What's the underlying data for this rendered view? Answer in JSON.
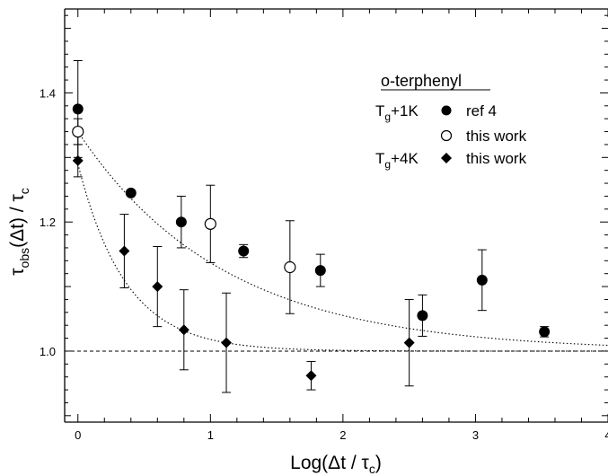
{
  "chart_data": {
    "type": "scatter",
    "title": "o-terphenyl",
    "xlabel": {
      "main": "Log(Δt / τ",
      "sub": "c",
      "tail": ")"
    },
    "ylabel": {
      "main": "τ",
      "sub1": "obs",
      "middle": "(Δt) / τ",
      "sub2": "c"
    },
    "xlim": [
      -0.1,
      4.0
    ],
    "ylim": [
      0.89,
      1.53
    ],
    "x_ticks": [
      0,
      1,
      2,
      3,
      4
    ],
    "x_tick_labels": [
      "0",
      "1",
      "2",
      "3",
      "4"
    ],
    "y_ticks": [
      1.0,
      1.2,
      1.4
    ],
    "y_tick_labels": [
      "1.0",
      "1.2",
      "1.4"
    ],
    "grid": false,
    "legend_position": "top-right",
    "legend": {
      "rows": [
        {
          "group_main": "T",
          "group_sub": "g",
          "group_tail": "+1K",
          "label": "ref 4",
          "marker": "filled-circle"
        },
        {
          "group_main": "",
          "group_sub": "",
          "group_tail": "",
          "label": "this work",
          "marker": "open-circle"
        },
        {
          "group_main": "T",
          "group_sub": "g",
          "group_tail": "+4K",
          "label": "this work",
          "marker": "filled-diamond"
        }
      ]
    },
    "series": [
      {
        "marker": "filled-circle",
        "points": [
          {
            "x": 0.0,
            "y": 1.375,
            "err": 0.075
          },
          {
            "x": 0.4,
            "y": 1.245,
            "err": 0.0
          },
          {
            "x": 0.78,
            "y": 1.2,
            "err": 0.04
          },
          {
            "x": 1.25,
            "y": 1.155,
            "err": 0.01
          },
          {
            "x": 1.83,
            "y": 1.125,
            "err": 0.025
          },
          {
            "x": 2.6,
            "y": 1.055,
            "err": 0.032
          },
          {
            "x": 3.05,
            "y": 1.11,
            "err": 0.047
          },
          {
            "x": 3.52,
            "y": 1.03,
            "err": 0.008
          }
        ]
      },
      {
        "marker": "open-circle",
        "points": [
          {
            "x": 0.0,
            "y": 1.34,
            "err": 0.02
          },
          {
            "x": 1.0,
            "y": 1.197,
            "err": 0.06
          },
          {
            "x": 1.6,
            "y": 1.13,
            "err": 0.072
          }
        ]
      },
      {
        "marker": "filled-diamond",
        "points": [
          {
            "x": 0.0,
            "y": 1.295,
            "err": 0.025
          },
          {
            "x": 0.35,
            "y": 1.155,
            "err": 0.057
          },
          {
            "x": 0.6,
            "y": 1.1,
            "err": 0.062
          },
          {
            "x": 0.8,
            "y": 1.033,
            "err": 0.062
          },
          {
            "x": 1.12,
            "y": 1.013,
            "err": 0.077
          },
          {
            "x": 1.76,
            "y": 0.962,
            "err": 0.022
          },
          {
            "x": 2.5,
            "y": 1.013,
            "err": 0.067
          }
        ]
      }
    ],
    "fit_curves": [
      {
        "style": "dotted",
        "baseline": 1.0,
        "amplitude": 0.34,
        "decay": 1.1,
        "x_range": [
          0.0,
          4.0
        ]
      },
      {
        "style": "dotted",
        "baseline": 1.0,
        "amplitude": 0.29,
        "decay": 0.36,
        "x_range": [
          0.0,
          4.0
        ]
      }
    ],
    "reference_line": {
      "y": 1.0,
      "style": "dashed"
    }
  }
}
